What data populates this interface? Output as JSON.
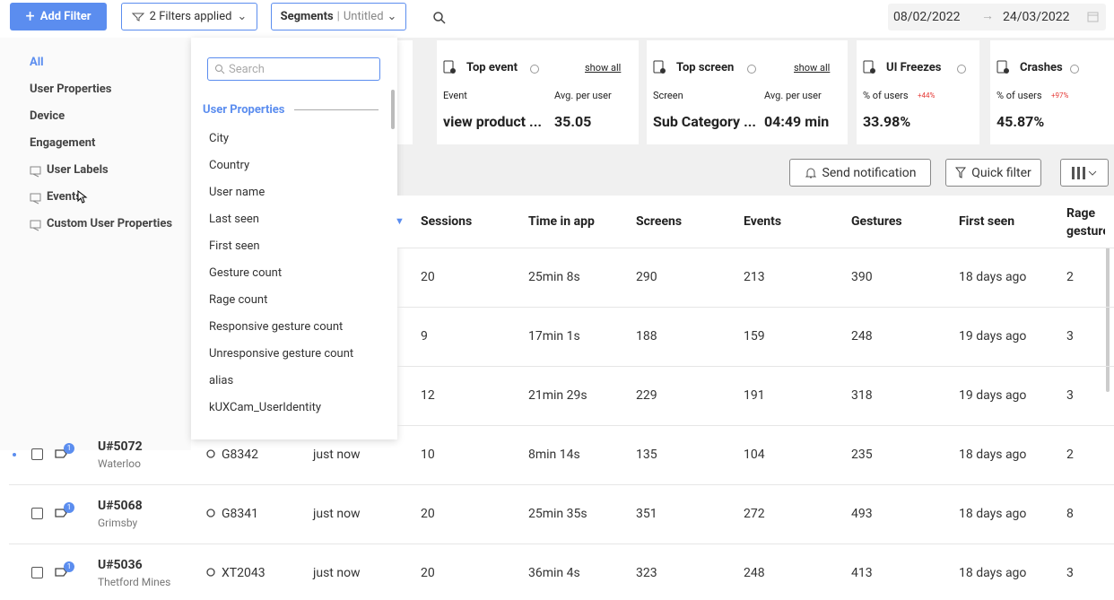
{
  "toolbar": {
    "add_filter": "Add Filter",
    "filters": "2 Filters applied",
    "segments": "Segments",
    "segment_name": "Untitled",
    "date_from": "08/02/2022",
    "date_to": "24/03/2022"
  },
  "menu": [
    "All",
    "User Properties",
    "Device",
    "Engagement",
    "User Labels",
    "Events",
    "Custom User Properties"
  ],
  "dropdown": {
    "search": "Search",
    "section": "User Properties",
    "items": [
      "City",
      "Country",
      "User name",
      "Last seen",
      "First seen",
      "Gesture count",
      "Rage count",
      "Responsive gesture count",
      "Unresponsive gesture count",
      "alias",
      "kUXCam_UserIdentity"
    ]
  },
  "cards": [
    {
      "title": "Top event",
      "link": "show all",
      "label": "Event",
      "label2": "Avg. per user",
      "value": "view product ...",
      "value2": "35.05"
    },
    {
      "title": "Top screen",
      "link": "show all",
      "label": "Screen",
      "label2": "Avg. per user",
      "value": "Sub Category ...",
      "value2": "04:49 min"
    },
    {
      "title": "UI Freezes",
      "label": "% of users",
      "change": "+44%",
      "value": "33.98%"
    },
    {
      "title": "Crashes",
      "label": "% of users",
      "change": "+97%",
      "value": "45.87%"
    }
  ],
  "actions": {
    "notify": "Send notification",
    "quick_filter": "Quick filter"
  },
  "table": {
    "columns": [
      "Sessions",
      "Time in app",
      "Screens",
      "Events",
      "Gestures",
      "First seen",
      "Rage gestures"
    ],
    "rows": [
      {
        "cells": [
          "20",
          "25min 8s",
          "290",
          "213",
          "390",
          "18 days ago",
          "2"
        ]
      },
      {
        "cells": [
          "9",
          "17min 1s",
          "188",
          "159",
          "248",
          "19 days ago",
          "3"
        ]
      },
      {
        "cells": [
          "12",
          "21min 29s",
          "229",
          "191",
          "318",
          "19 days ago",
          "3"
        ]
      },
      {
        "user": "U#5072",
        "city": "Waterloo",
        "badge": "1",
        "device": "G8342",
        "last_seen": "just now",
        "cells": [
          "10",
          "8min 14s",
          "135",
          "104",
          "235",
          "18 days ago",
          "2"
        ]
      },
      {
        "user": "U#5068",
        "city": "Grimsby",
        "badge": "1",
        "device": "G8341",
        "last_seen": "just now",
        "cells": [
          "20",
          "25min 35s",
          "351",
          "272",
          "493",
          "18 days ago",
          "8"
        ]
      },
      {
        "user": "U#5036",
        "city": "Thetford Mines",
        "badge": "1",
        "device": "XT2043",
        "last_seen": "just now",
        "cells": [
          "20",
          "36min 4s",
          "323",
          "248",
          "413",
          "18 days ago",
          "3"
        ]
      }
    ]
  }
}
